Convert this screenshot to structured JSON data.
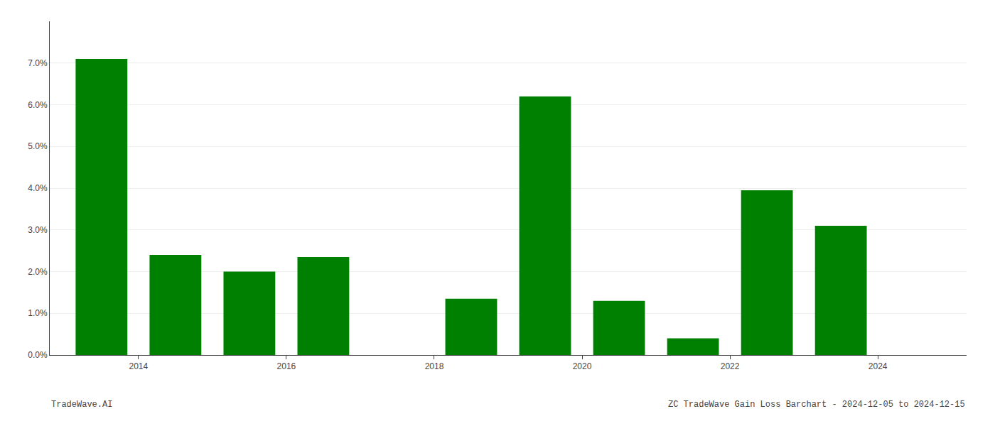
{
  "chart_data": {
    "type": "bar",
    "x": [
      2013,
      2014,
      2015,
      2016,
      2017,
      2018,
      2019,
      2020,
      2021,
      2022,
      2023
    ],
    "values": [
      0.071,
      0.024,
      0.02,
      0.0235,
      0.0,
      0.0135,
      0.062,
      0.013,
      0.004,
      0.0395,
      0.031
    ],
    "color": "#008000",
    "xlim": [
      2012.3,
      2024.7
    ],
    "xticks": [
      {
        "value": 2013.5,
        "label": "2014"
      },
      {
        "value": 2015.5,
        "label": "2016"
      },
      {
        "value": 2017.5,
        "label": "2018"
      },
      {
        "value": 2019.5,
        "label": "2020"
      },
      {
        "value": 2021.5,
        "label": "2022"
      },
      {
        "value": 2023.5,
        "label": "2024"
      }
    ],
    "ylim": [
      0,
      0.08
    ],
    "yticks": [
      {
        "value": 0.0,
        "label": "0.0%"
      },
      {
        "value": 0.01,
        "label": "1.0%"
      },
      {
        "value": 0.02,
        "label": "2.0%"
      },
      {
        "value": 0.03,
        "label": "3.0%"
      },
      {
        "value": 0.04,
        "label": "4.0%"
      },
      {
        "value": 0.05,
        "label": "5.0%"
      },
      {
        "value": 0.06,
        "label": "6.0%"
      },
      {
        "value": 0.07,
        "label": "7.0%"
      }
    ],
    "grid": true,
    "annotations": [
      "TradeWave.AI",
      "ZC TradeWave Gain Loss Barchart - 2024-12-05 to 2024-12-15"
    ]
  }
}
